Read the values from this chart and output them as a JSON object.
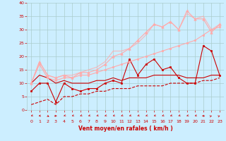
{
  "bg_color": "#cceeff",
  "grid_color": "#aacccc",
  "xlabel": "Vent moyen/en rafales ( km/h )",
  "xlabel_color": "#cc0000",
  "tick_color": "#cc0000",
  "xlim": [
    -0.5,
    23.5
  ],
  "ylim": [
    0,
    40
  ],
  "yticks": [
    0,
    5,
    10,
    15,
    20,
    25,
    30,
    35,
    40
  ],
  "xticks": [
    0,
    1,
    2,
    3,
    4,
    5,
    6,
    7,
    8,
    9,
    10,
    11,
    12,
    13,
    14,
    15,
    16,
    17,
    18,
    19,
    20,
    21,
    22,
    23
  ],
  "lines": [
    {
      "x": [
        0,
        1,
        2,
        3,
        4,
        5,
        6,
        7,
        8,
        9,
        10,
        11,
        12,
        13,
        14,
        15,
        16,
        17,
        18,
        19,
        20,
        21,
        22,
        23
      ],
      "y": [
        7,
        10,
        10,
        3,
        10,
        8,
        7,
        8,
        8,
        10,
        11,
        10,
        19,
        13,
        17,
        19,
        15,
        16,
        12,
        10,
        10,
        24,
        22,
        13
      ],
      "color": "#cc0000",
      "lw": 0.8,
      "marker": "s",
      "ms": 2.0,
      "alpha": 1.0,
      "dashed": false,
      "zorder": 5
    },
    {
      "x": [
        0,
        1,
        2,
        3,
        4,
        5,
        6,
        7,
        8,
        9,
        10,
        11,
        12,
        13,
        14,
        15,
        16,
        17,
        18,
        19,
        20,
        21,
        22,
        23
      ],
      "y": [
        10,
        13,
        12,
        10,
        11,
        10,
        10,
        10,
        11,
        11,
        12,
        11,
        12,
        12,
        12,
        13,
        13,
        13,
        13,
        12,
        12,
        12,
        13,
        13
      ],
      "color": "#cc0000",
      "lw": 0.8,
      "marker": null,
      "ms": 0,
      "alpha": 1.0,
      "dashed": false,
      "zorder": 4
    },
    {
      "x": [
        0,
        1,
        2,
        3,
        4,
        5,
        6,
        7,
        8,
        9,
        10,
        11,
        12,
        13,
        14,
        15,
        16,
        17,
        18,
        19,
        20,
        21,
        22,
        23
      ],
      "y": [
        2,
        3,
        4,
        2,
        5,
        5,
        6,
        6,
        7,
        7,
        8,
        8,
        8,
        9,
        9,
        9,
        9,
        10,
        10,
        10,
        10,
        11,
        11,
        12
      ],
      "color": "#cc0000",
      "lw": 0.8,
      "marker": null,
      "ms": 0,
      "alpha": 1.0,
      "dashed": true,
      "zorder": 3
    },
    {
      "x": [
        0,
        1,
        2,
        3,
        4,
        5,
        6,
        7,
        8,
        9,
        10,
        11,
        12,
        13,
        14,
        15,
        16,
        17,
        18,
        19,
        20,
        21,
        22,
        23
      ],
      "y": [
        10,
        17,
        12,
        11,
        12,
        12,
        13,
        13,
        14,
        15,
        16,
        17,
        18,
        19,
        20,
        21,
        22,
        23,
        24,
        25,
        26,
        28,
        30,
        31
      ],
      "color": "#ffaaaa",
      "lw": 0.8,
      "marker": "s",
      "ms": 2.0,
      "alpha": 1.0,
      "dashed": false,
      "zorder": 5
    },
    {
      "x": [
        0,
        1,
        2,
        3,
        4,
        5,
        6,
        7,
        8,
        9,
        10,
        11,
        12,
        13,
        14,
        15,
        16,
        17,
        18,
        19,
        20,
        21,
        22,
        23
      ],
      "y": [
        10,
        18,
        13,
        12,
        13,
        12,
        14,
        14,
        15,
        17,
        20,
        21,
        23,
        26,
        29,
        32,
        31,
        33,
        30,
        37,
        34,
        34,
        29,
        32
      ],
      "color": "#ffaaaa",
      "lw": 0.8,
      "marker": "^",
      "ms": 2.5,
      "alpha": 1.0,
      "dashed": false,
      "zorder": 5
    },
    {
      "x": [
        0,
        1,
        2,
        3,
        4,
        5,
        6,
        7,
        8,
        9,
        10,
        11,
        12,
        13,
        14,
        15,
        16,
        17,
        18,
        19,
        20,
        21,
        22,
        23
      ],
      "y": [
        10,
        18,
        13,
        12,
        13,
        13,
        14,
        15,
        16,
        18,
        22,
        22,
        23,
        25,
        28,
        32,
        31,
        33,
        30,
        36,
        34,
        35,
        30,
        32
      ],
      "color": "#ffaaaa",
      "lw": 0.8,
      "marker": null,
      "ms": 0,
      "alpha": 0.8,
      "dashed": false,
      "zorder": 3
    }
  ],
  "wind_angles": [
    225,
    240,
    150,
    90,
    225,
    225,
    225,
    225,
    225,
    225,
    225,
    225,
    225,
    225,
    225,
    225,
    225,
    225,
    225,
    225,
    225,
    270,
    45,
    45
  ],
  "wind_arrow_color": "#cc0000"
}
